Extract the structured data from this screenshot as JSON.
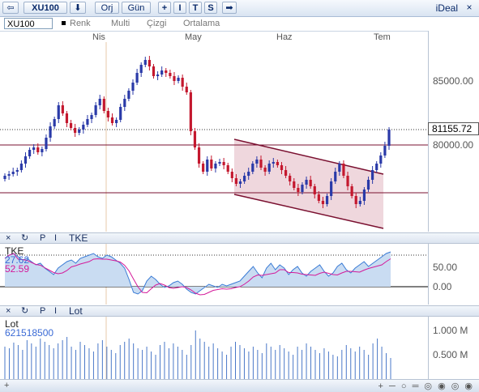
{
  "toolbar": {
    "back_icon": "back-arrow-icon",
    "symbol": "XU100",
    "download_icon": "down-arrow-icon",
    "period_label": "Orj",
    "interval_label": "Gün",
    "add_label": "+",
    "indicator_label": "I",
    "trend_label": "T",
    "strategy_label": "S",
    "forward_icon": "right-arrow-icon",
    "brand": "iDeal",
    "close_label": "×"
  },
  "options": {
    "symbol": "XU100",
    "color_label": "Renk",
    "multi_label": "Multi",
    "draw_label": "Çizgi",
    "average_label": "Ortalama"
  },
  "months": [
    "Nis",
    "May",
    "Haz",
    "Tem"
  ],
  "price_pane": {
    "scale_labels": [
      "85000.00",
      "80000.00"
    ],
    "last_price": "81155.72",
    "up_color": "#2a3aa8",
    "down_color": "#c4182e",
    "channel_fill": "#e9c9d2",
    "channel_line": "#7a1030",
    "horizontal_line_color": "#7a1030"
  },
  "tke_pane": {
    "header": {
      "close": "×",
      "refresh": "↻",
      "p": "P",
      "i": "I",
      "title": "TKE"
    },
    "name": "TKE",
    "value1": "27.62",
    "value2": "52.59",
    "scale_labels": [
      "50.00",
      "0.00"
    ],
    "area_color": "#c9dcf2",
    "line_color": "#3a7bd5",
    "signal_color": "#d41a9a"
  },
  "volume_pane": {
    "header": {
      "close": "×",
      "refresh": "↻",
      "p": "P",
      "i": "I",
      "title": "Lot"
    },
    "name": "Lot",
    "value": "621518500",
    "scale_labels": [
      "1.000 M",
      "0.500 M"
    ],
    "bar_color": "#4a78c8"
  },
  "statusbar": {
    "left": "+",
    "right": "+ ─ ○ ═ ◎ ◉ ◎ ◉"
  }
}
